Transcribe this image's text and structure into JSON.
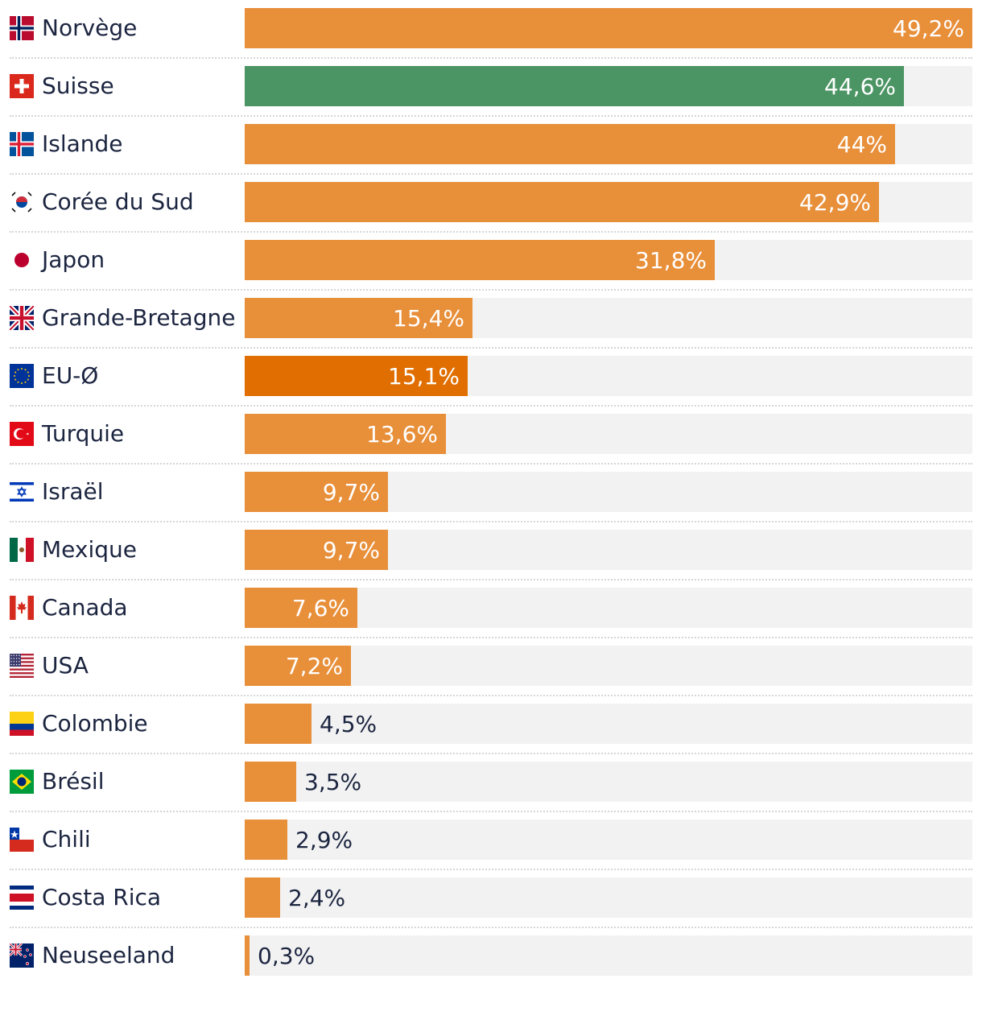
{
  "chart_data": {
    "type": "bar",
    "orientation": "horizontal",
    "xlim": [
      0,
      49.2
    ],
    "value_suffix": "%",
    "default_color": "#e88f3a",
    "track_color": "#f2f2f2",
    "rows": [
      {
        "country": "Norvège",
        "flag": "norway-flag-icon",
        "value": 49.2,
        "label": "49,2%",
        "color": "#e88f3a"
      },
      {
        "country": "Suisse",
        "flag": "switzerland-flag-icon",
        "value": 44.6,
        "label": "44,6%",
        "color": "#4b9463"
      },
      {
        "country": "Islande",
        "flag": "iceland-flag-icon",
        "value": 44,
        "label": "44%",
        "color": "#e88f3a"
      },
      {
        "country": "Corée du Sud",
        "flag": "south-korea-flag-icon",
        "value": 42.9,
        "label": "42,9%",
        "color": "#e88f3a"
      },
      {
        "country": "Japon",
        "flag": "japan-flag-icon",
        "value": 31.8,
        "label": "31,8%",
        "color": "#e88f3a"
      },
      {
        "country": "Grande-Bretagne",
        "flag": "uk-flag-icon",
        "value": 15.4,
        "label": "15,4%",
        "color": "#e88f3a"
      },
      {
        "country": "EU-Ø",
        "flag": "eu-flag-icon",
        "value": 15.1,
        "label": "15,1%",
        "color": "#e06e00"
      },
      {
        "country": "Turquie",
        "flag": "turkey-flag-icon",
        "value": 13.6,
        "label": "13,6%",
        "color": "#e88f3a"
      },
      {
        "country": "Israël",
        "flag": "israel-flag-icon",
        "value": 9.7,
        "label": "9,7%",
        "color": "#e88f3a"
      },
      {
        "country": "Mexique",
        "flag": "mexico-flag-icon",
        "value": 9.7,
        "label": "9,7%",
        "color": "#e88f3a"
      },
      {
        "country": "Canada",
        "flag": "canada-flag-icon",
        "value": 7.6,
        "label": "7,6%",
        "color": "#e88f3a"
      },
      {
        "country": "USA",
        "flag": "usa-flag-icon",
        "value": 7.2,
        "label": "7,2%",
        "color": "#e88f3a"
      },
      {
        "country": "Colombie",
        "flag": "colombia-flag-icon",
        "value": 4.5,
        "label": "4,5%",
        "color": "#e88f3a"
      },
      {
        "country": "Brésil",
        "flag": "brazil-flag-icon",
        "value": 3.5,
        "label": "3,5%",
        "color": "#e88f3a"
      },
      {
        "country": "Chili",
        "flag": "chile-flag-icon",
        "value": 2.9,
        "label": "2,9%",
        "color": "#e88f3a"
      },
      {
        "country": "Costa Rica",
        "flag": "costa-rica-flag-icon",
        "value": 2.4,
        "label": "2,4%",
        "color": "#e88f3a"
      },
      {
        "country": "Neuseeland",
        "flag": "new-zealand-flag-icon",
        "value": 0.3,
        "label": "0,3%",
        "color": "#e88f3a"
      }
    ]
  }
}
